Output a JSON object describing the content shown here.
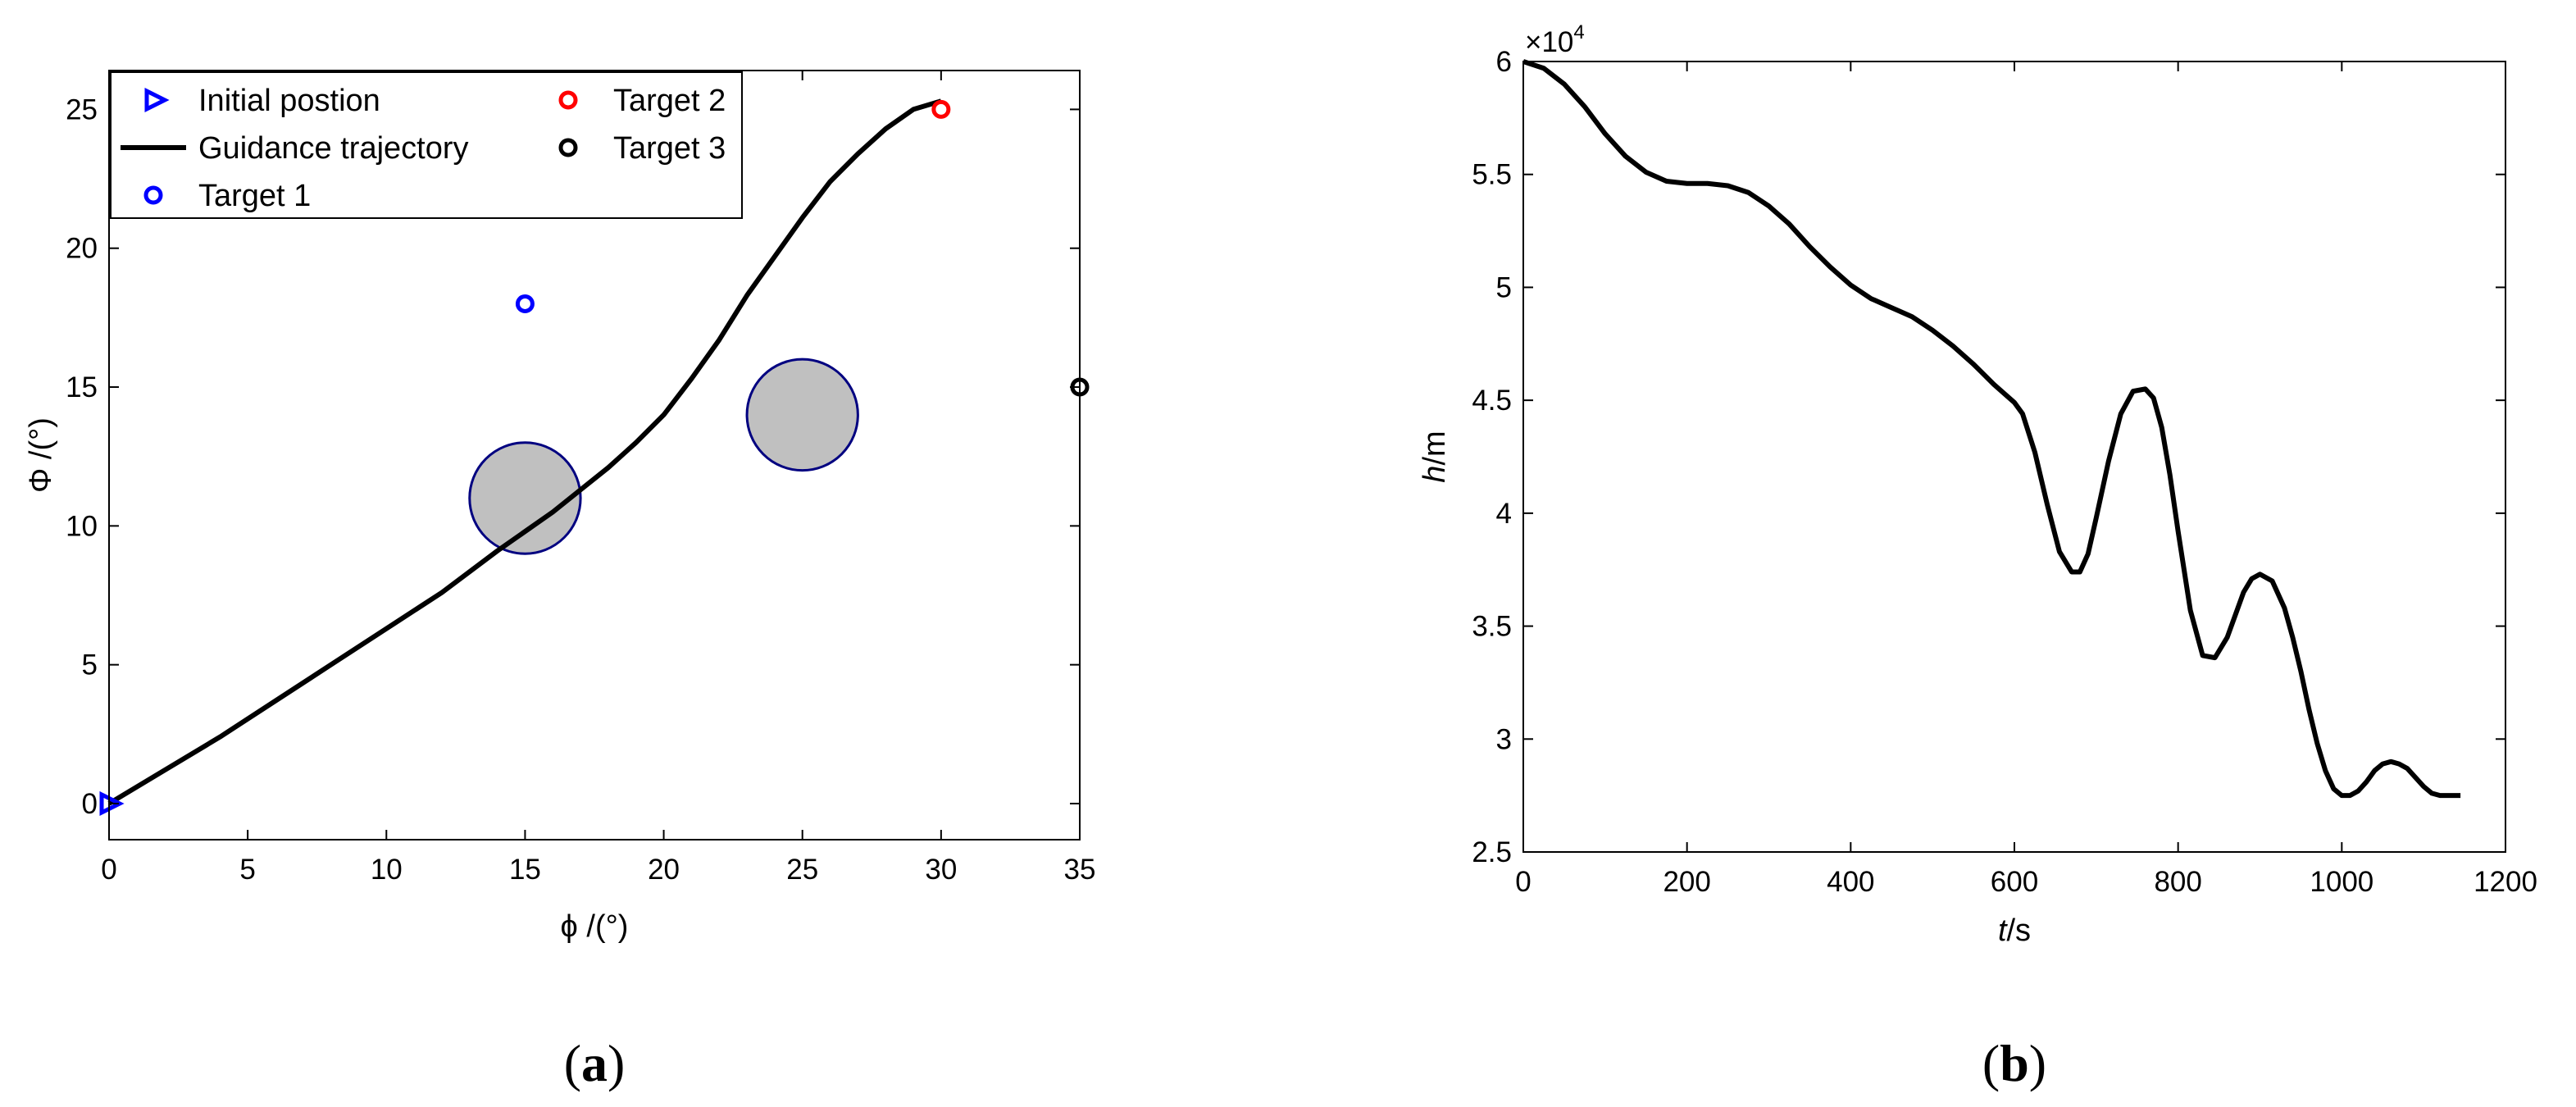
{
  "chart_data": [
    {
      "panel_label": "a",
      "type": "line",
      "xlabel": "ϕ /(°)",
      "ylabel": "Φ /(°)",
      "xlim": [
        0,
        35
      ],
      "ylim": [
        -1.3,
        26.4
      ],
      "xticks": [
        0,
        5,
        10,
        15,
        20,
        25,
        30,
        35
      ],
      "yticks": [
        0,
        5,
        10,
        15,
        20,
        25
      ],
      "legend_position": "top-left",
      "series": [
        {
          "name": "Initial postion",
          "kind": "marker",
          "marker": "triangle-right",
          "color": "#0000ff",
          "x": [
            0
          ],
          "y": [
            0
          ]
        },
        {
          "name": "Guidance trajectory",
          "kind": "line",
          "color": "#000000",
          "x": [
            0,
            2,
            4,
            6,
            8,
            10,
            12,
            14,
            15,
            16,
            17,
            18,
            19,
            20,
            21,
            22,
            23,
            24,
            25,
            26,
            27,
            28,
            29,
            30
          ],
          "y": [
            0,
            1.2,
            2.4,
            3.7,
            5.0,
            6.3,
            7.6,
            9.1,
            9.8,
            10.5,
            11.3,
            12.1,
            13.0,
            14.0,
            15.3,
            16.7,
            18.3,
            19.7,
            21.1,
            22.4,
            23.4,
            24.3,
            25.0,
            25.3
          ]
        },
        {
          "name": "Target 1",
          "kind": "marker",
          "marker": "circle",
          "color": "#0000ff",
          "x": [
            15
          ],
          "y": [
            18
          ]
        },
        {
          "name": "Target 2",
          "kind": "marker",
          "marker": "circle",
          "color": "#ff0000",
          "x": [
            30
          ],
          "y": [
            25
          ]
        },
        {
          "name": "Target 3",
          "kind": "marker",
          "marker": "circle",
          "color": "#000000",
          "x": [
            35
          ],
          "y": [
            15
          ]
        }
      ],
      "obstacles": [
        {
          "cx": 15,
          "cy": 11,
          "r": 2,
          "fill": "#c0c0c0",
          "stroke": "#000080"
        },
        {
          "cx": 25,
          "cy": 14,
          "r": 2,
          "fill": "#c0c0c0",
          "stroke": "#000080"
        }
      ]
    },
    {
      "panel_label": "b",
      "type": "line",
      "xlabel": "t/s",
      "ylabel": "h/m",
      "xlim": [
        0,
        1200
      ],
      "ylim": [
        2.5,
        6
      ],
      "xticks": [
        0,
        200,
        400,
        600,
        800,
        1000,
        1200
      ],
      "yticks": [
        2.5,
        3,
        3.5,
        4,
        4.5,
        5,
        5.5,
        6
      ],
      "y_multiplier": "×10",
      "y_multiplier_exp": "4",
      "series": [
        {
          "color": "#000000",
          "x": [
            0,
            25,
            50,
            75,
            100,
            125,
            150,
            175,
            200,
            225,
            250,
            275,
            300,
            325,
            350,
            375,
            400,
            425,
            450,
            475,
            500,
            525,
            550,
            575,
            600,
            610,
            625,
            640,
            655,
            670,
            680,
            690,
            700,
            715,
            730,
            745,
            760,
            770,
            780,
            790,
            800,
            815,
            830,
            845,
            860,
            870,
            880,
            890,
            900,
            915,
            930,
            940,
            950,
            960,
            970,
            980,
            990,
            1000,
            1010,
            1020,
            1030,
            1040,
            1050,
            1060,
            1070,
            1080,
            1090,
            1100,
            1110,
            1120,
            1130,
            1140,
            1145
          ],
          "y": [
            6.0,
            5.97,
            5.9,
            5.8,
            5.68,
            5.58,
            5.51,
            5.47,
            5.46,
            5.46,
            5.45,
            5.42,
            5.36,
            5.28,
            5.18,
            5.09,
            5.01,
            4.95,
            4.91,
            4.87,
            4.81,
            4.74,
            4.66,
            4.57,
            4.49,
            4.44,
            4.27,
            4.04,
            3.83,
            3.74,
            3.74,
            3.82,
            3.98,
            4.23,
            4.44,
            4.54,
            4.55,
            4.51,
            4.38,
            4.17,
            3.92,
            3.57,
            3.37,
            3.36,
            3.45,
            3.55,
            3.65,
            3.71,
            3.73,
            3.7,
            3.58,
            3.45,
            3.3,
            3.13,
            2.98,
            2.86,
            2.78,
            2.75,
            2.75,
            2.77,
            2.81,
            2.86,
            2.89,
            2.9,
            2.89,
            2.87,
            2.83,
            2.79,
            2.76,
            2.75,
            2.75,
            2.75,
            2.75
          ]
        }
      ]
    }
  ]
}
